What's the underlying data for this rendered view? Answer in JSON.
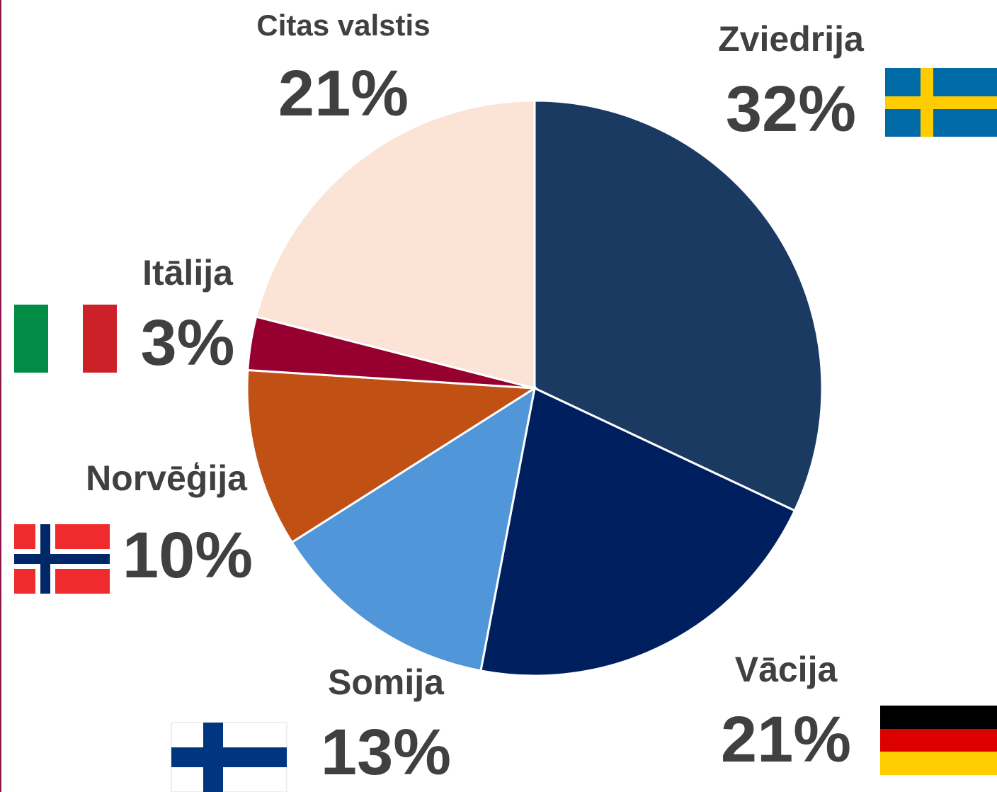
{
  "chart_data": {
    "type": "pie",
    "categories": [
      "Zviedrija",
      "Vācija",
      "Somija",
      "Norvēģija",
      "Itālija",
      "Citas valstis"
    ],
    "values": [
      32,
      21,
      13,
      10,
      3,
      21
    ],
    "value_labels": [
      "32%",
      "21%",
      "13%",
      "10%",
      "3%",
      "21%"
    ],
    "colors": [
      "#1a3a62",
      "#001f5f",
      "#5096d8",
      "#c05014",
      "#960030",
      "#fbe3d6"
    ]
  }
}
